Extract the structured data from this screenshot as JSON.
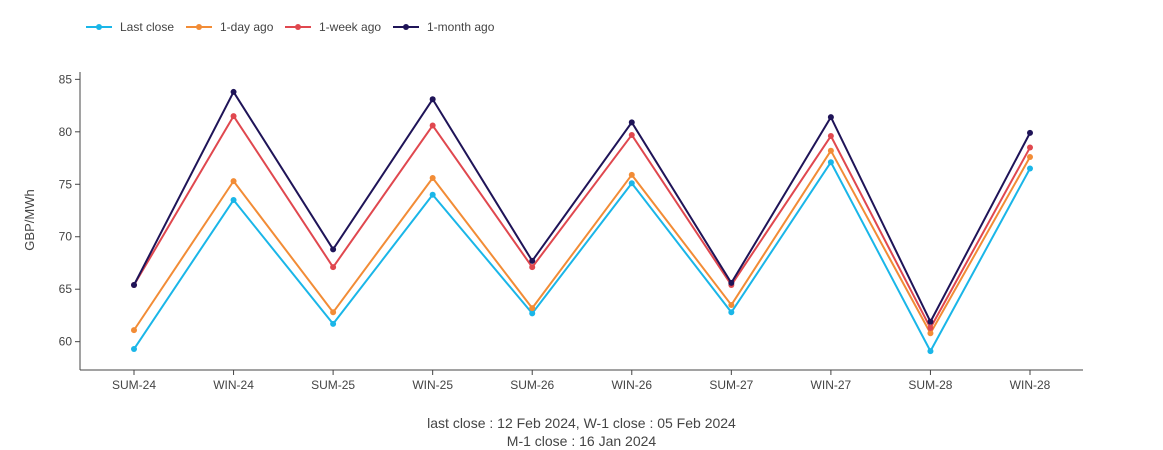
{
  "chart_data": {
    "type": "line",
    "categories": [
      "SUM-24",
      "WIN-24",
      "SUM-25",
      "WIN-25",
      "SUM-26",
      "WIN-26",
      "SUM-27",
      "WIN-27",
      "SUM-28",
      "WIN-28"
    ],
    "series": [
      {
        "name": "Last close",
        "color": "#1ab6e8",
        "values": [
          59.3,
          73.5,
          61.7,
          74.0,
          62.7,
          75.1,
          62.8,
          77.1,
          59.1,
          76.5
        ]
      },
      {
        "name": "1-day ago",
        "color": "#f28c36",
        "values": [
          61.1,
          75.3,
          62.8,
          75.6,
          63.2,
          75.9,
          63.5,
          78.2,
          60.8,
          77.6
        ]
      },
      {
        "name": "1-week ago",
        "color": "#e0484f",
        "values": [
          65.4,
          81.5,
          67.1,
          80.6,
          67.1,
          79.7,
          65.4,
          79.6,
          61.3,
          78.5
        ]
      },
      {
        "name": "1-month ago",
        "color": "#1f1458",
        "values": [
          65.4,
          83.8,
          68.8,
          83.1,
          67.7,
          80.9,
          65.6,
          81.4,
          61.9,
          79.9
        ]
      }
    ],
    "ylabel": "GBP/MWh",
    "yticks": [
      60,
      65,
      70,
      75,
      80,
      85
    ],
    "ylim": [
      57.3,
      85.7
    ],
    "legend_position": "top-left",
    "grid": false
  },
  "caption": {
    "line1": "last close : 12 Feb 2024, W-1 close : 05 Feb 2024",
    "line2": "M-1 close : 16 Jan 2024"
  }
}
